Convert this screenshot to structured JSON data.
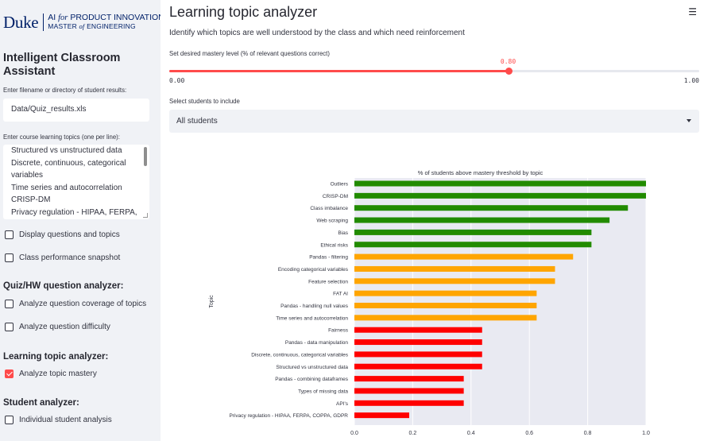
{
  "sidebar": {
    "logo": {
      "duke": "Duke",
      "ai": "AI",
      "for": "for",
      "product": "PRODUCT INNOVATION",
      "master": "MASTER",
      "of": "of",
      "engineering": "ENGINEERING"
    },
    "app_title": "Intelligent Classroom Assistant",
    "filename_label": "Enter filename or directory of student results:",
    "filename_value": "Data/Quiz_results.xls",
    "topics_label": "Enter course learning topics (one per line):",
    "topics_lines": [
      "Structured vs unstructured data",
      "Discrete, continuous, categorical",
      "variables",
      "Time series and autocorrelation",
      "CRISP-DM",
      "Privacy regulation - HIPAA, FERPA,"
    ],
    "checkboxes": {
      "display_questions": {
        "label": "Display questions and topics",
        "checked": false
      },
      "class_snapshot": {
        "label": "Class performance snapshot",
        "checked": false
      },
      "question_coverage": {
        "label": "Analyze question coverage of topics",
        "checked": false
      },
      "question_difficulty": {
        "label": "Analyze question difficulty",
        "checked": false
      },
      "topic_mastery": {
        "label": "Analyze topic mastery",
        "checked": true
      },
      "individual_student": {
        "label": "Individual student analysis",
        "checked": false
      }
    },
    "sections": {
      "quiz_hw": "Quiz/HW question analyzer:",
      "learning_topic": "Learning topic analyzer:",
      "student": "Student analyzer:"
    }
  },
  "main": {
    "title": "Learning topic analyzer",
    "menu_icon": "hamburger-icon",
    "subtitle": "Identify which topics are well understood by the class and which need reinforcement",
    "slider": {
      "label": "Set desired mastery level (% of relevant questions correct)",
      "value": 0.8,
      "value_text": "0.80",
      "min": 0.0,
      "min_text": "0.00",
      "max": 1.0,
      "max_text": "1.00",
      "accent": "#ff4b4b"
    },
    "select": {
      "label": "Select students to include",
      "value": "All students"
    }
  },
  "chart_data": {
    "type": "bar",
    "orientation": "horizontal",
    "title": "% of students above mastery threshold by topic",
    "ylabel": "Topic",
    "xlabel": "",
    "xlim": [
      0,
      1.0
    ],
    "xticks": [
      "0.0",
      "0.2",
      "0.4",
      "0.6",
      "0.8",
      "1.0"
    ],
    "grid": true,
    "colors": {
      "green": "#228b00",
      "orange": "#ffa500",
      "red": "#ff0000",
      "plot_bg": "#e9eaf2"
    },
    "categories": [
      "Outliers",
      "CRISP-DM",
      "Class imbalance",
      "Web scraping",
      "Bias",
      "Ethical risks",
      "Pandas - filtering",
      "Encoding categorical variables",
      "Feature selection",
      "FAT AI",
      "Pandas - handling null values",
      "Time series and autocorrelation",
      "Fairness",
      "Pandas - data manipulation",
      "Discrete, continuous, categorical variables",
      "Structured vs unstructured data",
      "Pandas - combining dataframes",
      "Types of missing data",
      "API's",
      "Privacy regulation - HIPAA, FERPA, COPPA, GDPR"
    ],
    "values": [
      1.0,
      1.0,
      0.938,
      0.875,
      0.813,
      0.813,
      0.75,
      0.688,
      0.688,
      0.625,
      0.625,
      0.625,
      0.438,
      0.438,
      0.438,
      0.438,
      0.375,
      0.375,
      0.375,
      0.188
    ],
    "bar_colors": [
      "green",
      "green",
      "green",
      "green",
      "green",
      "green",
      "orange",
      "orange",
      "orange",
      "orange",
      "orange",
      "orange",
      "red",
      "red",
      "red",
      "red",
      "red",
      "red",
      "red",
      "red"
    ]
  }
}
